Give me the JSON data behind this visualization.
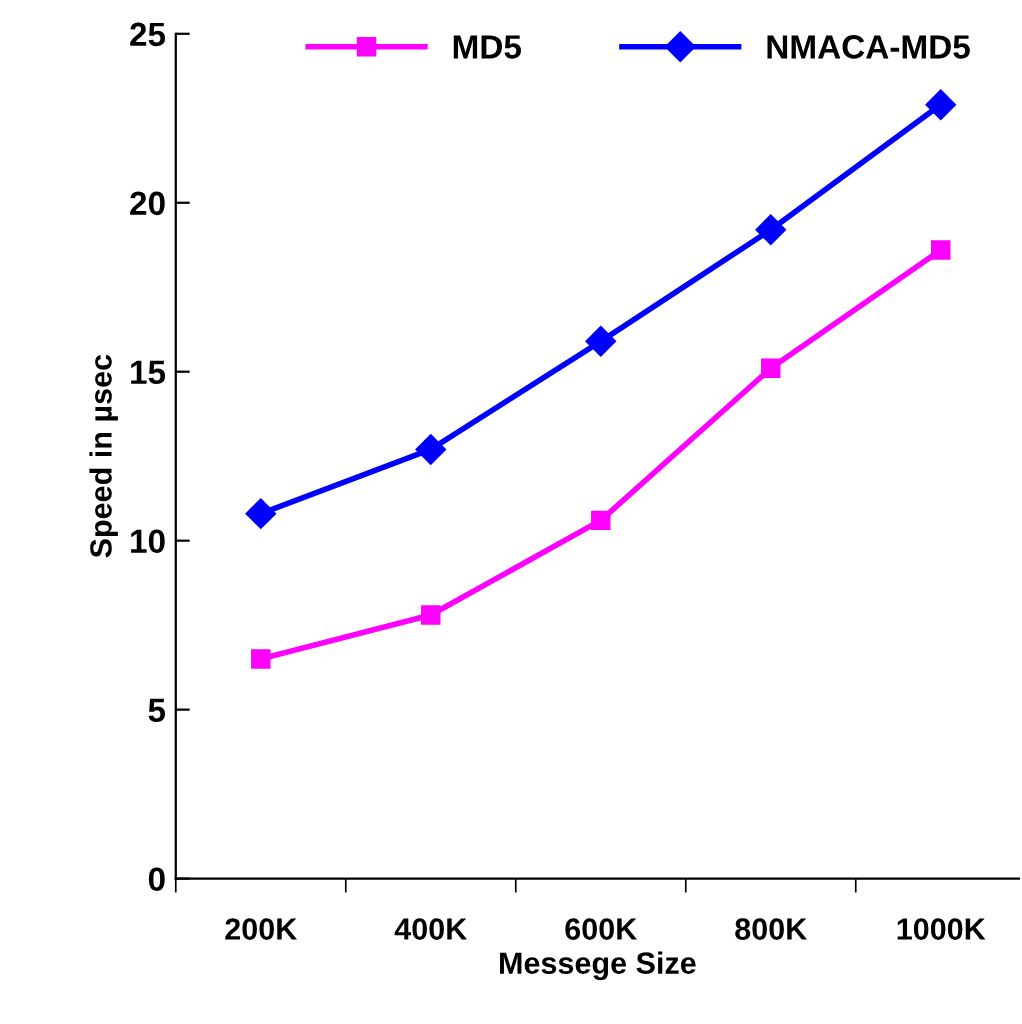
{
  "chart_data": {
    "type": "line",
    "xlabel": "Messege Size",
    "ylabel": "Speed in µsec",
    "categories": [
      "200K",
      "400K",
      "600K",
      "800K",
      "1000K"
    ],
    "series": [
      {
        "name": "MD5",
        "color": "#ff00ff",
        "marker": "square",
        "values": [
          6.5,
          7.8,
          10.6,
          15.1,
          18.6
        ]
      },
      {
        "name": "NMACA-MD5",
        "color": "#0000ff",
        "marker": "diamond",
        "values": [
          10.8,
          12.7,
          15.9,
          19.2,
          22.9
        ]
      }
    ],
    "ylim": [
      0,
      25
    ],
    "yticks": [
      0,
      5,
      10,
      15,
      20,
      25
    ],
    "grid": false,
    "legend": "top",
    "line_style": "solid"
  }
}
